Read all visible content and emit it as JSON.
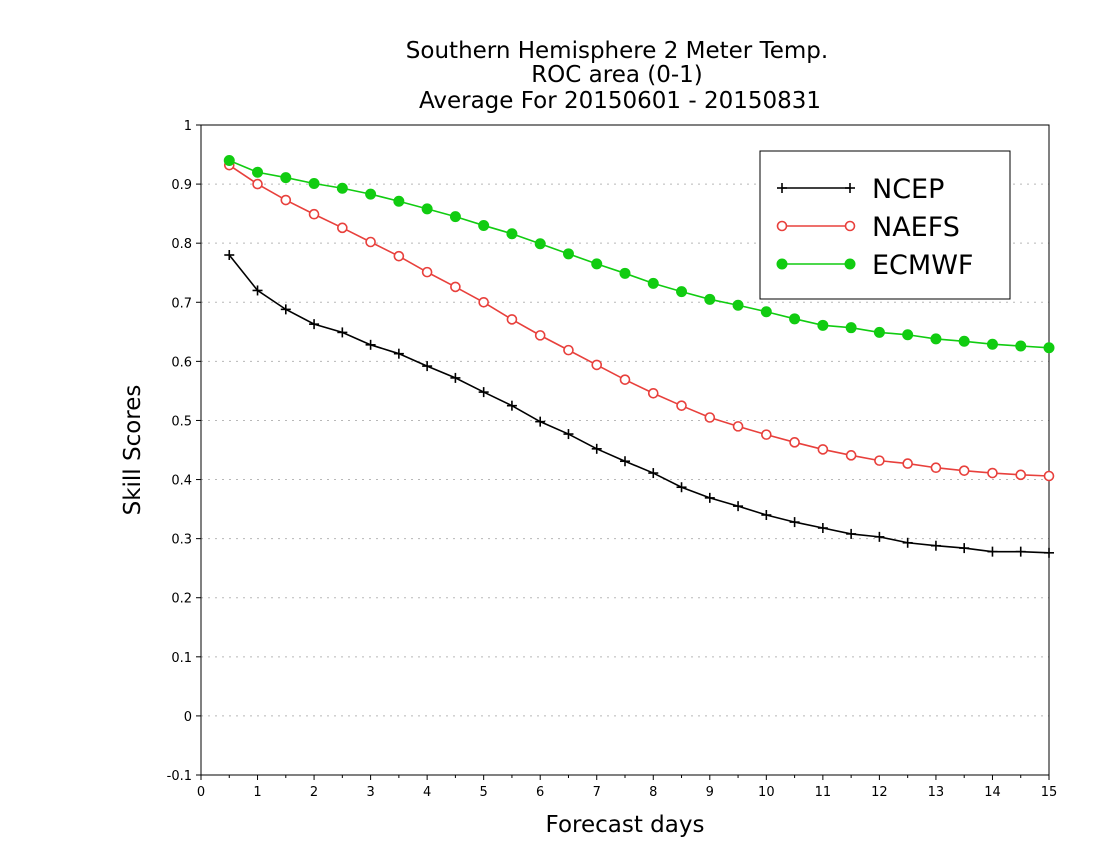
{
  "chart_data": {
    "type": "line",
    "title": "Southern Hemisphere 2 Meter Temp.",
    "subtitle": "ROC area (0-1)",
    "subtitle2": "Average For 20150601 - 20150831",
    "xlabel": "Forecast days",
    "ylabel": "Skill Scores",
    "xlim": [
      0,
      15
    ],
    "ylim": [
      -0.1,
      1
    ],
    "xticks": [
      "0",
      "1",
      "2",
      "3",
      "4",
      "5",
      "6",
      "7",
      "8",
      "9",
      "10",
      "11",
      "12",
      "13",
      "14",
      "15"
    ],
    "yticks": [
      "-0.1",
      "0",
      "0.1",
      "0.2",
      "0.3",
      "0.4",
      "0.5",
      "0.6",
      "0.7",
      "0.8",
      "0.9",
      "1"
    ],
    "grid": "horizontal-dotted",
    "legend_position": "top-right",
    "x": [
      0.5,
      1,
      1.5,
      2,
      2.5,
      3,
      3.5,
      4,
      4.5,
      5,
      5.5,
      6,
      6.5,
      7,
      7.5,
      8,
      8.5,
      9,
      9.5,
      10,
      10.5,
      11,
      11.5,
      12,
      12.5,
      13,
      13.5,
      14,
      14.5,
      15
    ],
    "series": [
      {
        "name": "NCEP",
        "color": "#000000",
        "marker": "plus",
        "values": [
          0.78,
          0.72,
          0.688,
          0.663,
          0.649,
          0.628,
          0.613,
          0.592,
          0.572,
          0.548,
          0.525,
          0.498,
          0.477,
          0.452,
          0.431,
          0.411,
          0.387,
          0.369,
          0.355,
          0.34,
          0.328,
          0.318,
          0.308,
          0.303,
          0.293,
          0.288,
          0.284,
          0.278,
          0.278,
          0.276
        ]
      },
      {
        "name": "NAEFS",
        "color": "#e8403c",
        "marker": "open-circle",
        "values": [
          0.932,
          0.9,
          0.873,
          0.849,
          0.826,
          0.802,
          0.778,
          0.751,
          0.726,
          0.7,
          0.671,
          0.644,
          0.619,
          0.594,
          0.569,
          0.546,
          0.525,
          0.505,
          0.49,
          0.476,
          0.463,
          0.451,
          0.441,
          0.432,
          0.427,
          0.42,
          0.415,
          0.411,
          0.408,
          0.406
        ]
      },
      {
        "name": "ECMWF",
        "color": "#11cc11",
        "marker": "filled-circle",
        "values": [
          0.94,
          0.92,
          0.911,
          0.901,
          0.893,
          0.883,
          0.871,
          0.858,
          0.845,
          0.83,
          0.816,
          0.799,
          0.782,
          0.765,
          0.749,
          0.732,
          0.718,
          0.705,
          0.695,
          0.684,
          0.672,
          0.661,
          0.657,
          0.649,
          0.645,
          0.638,
          0.634,
          0.629,
          0.626,
          0.623
        ]
      }
    ]
  }
}
